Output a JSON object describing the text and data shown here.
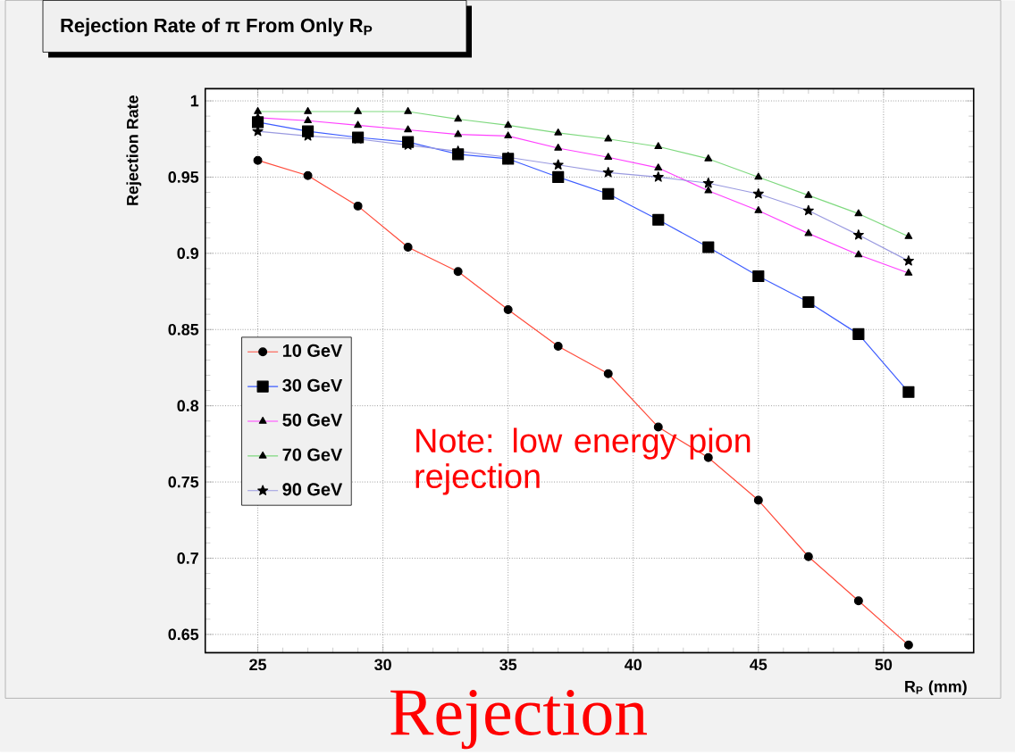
{
  "chart_data": {
    "type": "line",
    "title": "Rejection Rate of π From Only R$_{P}$",
    "xlabel": "R$_{P}$ (mm)",
    "ylabel": "Rejection Rate",
    "x": [
      25,
      27,
      29,
      31,
      33,
      35,
      37,
      39,
      41,
      43,
      45,
      47,
      49,
      51
    ],
    "series": [
      {
        "name": "10 GeV",
        "color": "#ff4c3c",
        "marker": "circle",
        "values": [
          0.961,
          0.951,
          0.931,
          0.904,
          0.888,
          0.863,
          0.839,
          0.821,
          0.786,
          0.766,
          0.738,
          0.701,
          0.672,
          0.643
        ]
      },
      {
        "name": "30 GeV",
        "color": "#3d5cff",
        "marker": "square",
        "values": [
          0.986,
          0.98,
          0.976,
          0.973,
          0.965,
          0.962,
          0.95,
          0.939,
          0.922,
          0.904,
          0.885,
          0.868,
          0.847,
          0.809
        ]
      },
      {
        "name": "50 GeV",
        "color": "#ff40ff",
        "marker": "triangle",
        "values": [
          0.989,
          0.987,
          0.984,
          0.981,
          0.978,
          0.977,
          0.969,
          0.963,
          0.956,
          0.941,
          0.928,
          0.913,
          0.899,
          0.887
        ]
      },
      {
        "name": "70 GeV",
        "color": "#7fd97f",
        "marker": "triangle",
        "values": [
          0.993,
          0.993,
          0.993,
          0.993,
          0.988,
          0.984,
          0.979,
          0.975,
          0.97,
          0.962,
          0.95,
          0.938,
          0.926,
          0.911
        ]
      },
      {
        "name": "90 GeV",
        "color": "#9a9ae0",
        "marker": "star",
        "values": [
          0.98,
          0.977,
          0.975,
          0.971,
          0.967,
          0.963,
          0.958,
          0.953,
          0.95,
          0.946,
          0.939,
          0.928,
          0.912,
          0.895
        ]
      }
    ],
    "xlim": [
      22.9,
      53.6
    ],
    "ylim": [
      0.638,
      1.008
    ],
    "xticks": [
      25,
      30,
      35,
      40,
      45,
      50
    ],
    "yticks": [
      0.65,
      0.7,
      0.75,
      0.8,
      0.85,
      0.9,
      0.95,
      1
    ],
    "grid": true,
    "legend": "left",
    "line_style": "solid",
    "annotations": [
      "Note: low energy pion rejection",
      "Rejection"
    ]
  }
}
